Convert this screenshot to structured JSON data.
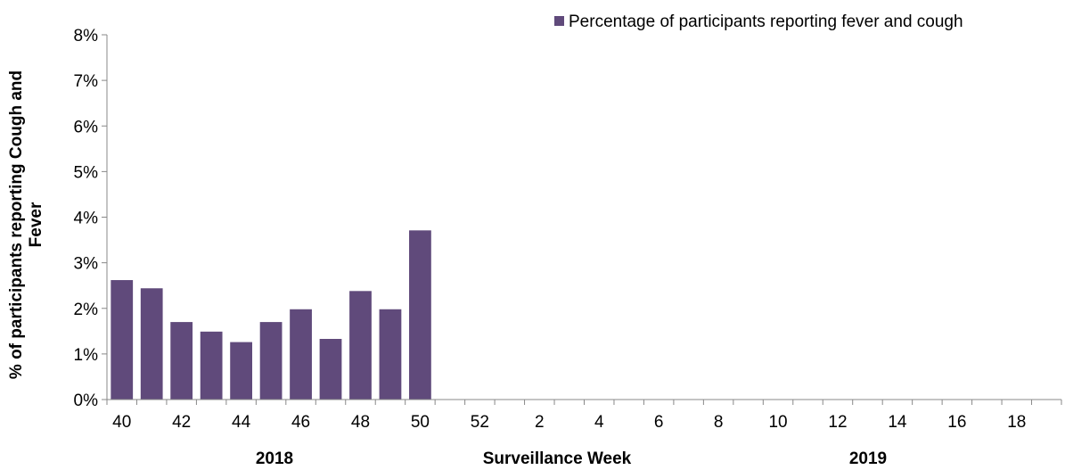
{
  "chart_data": {
    "type": "bar",
    "categories": [
      "40",
      "41",
      "42",
      "43",
      "44",
      "45",
      "46",
      "47",
      "48",
      "49",
      "50",
      "51",
      "52",
      "1",
      "2",
      "3",
      "4",
      "5",
      "6",
      "7",
      "8",
      "9",
      "10",
      "11",
      "12",
      "13",
      "14",
      "15",
      "16",
      "17",
      "18",
      "19"
    ],
    "x_tick_labels": [
      "40",
      "42",
      "44",
      "46",
      "48",
      "50",
      "52",
      "2",
      "4",
      "6",
      "8",
      "10",
      "12",
      "14",
      "16",
      "18"
    ],
    "series": [
      {
        "name": "Percentage of participants reporting fever and cough",
        "color": "#604a7b",
        "values": [
          2.62,
          2.44,
          1.7,
          1.49,
          1.26,
          1.7,
          1.98,
          1.33,
          2.38,
          1.98,
          3.71,
          null,
          null,
          null,
          null,
          null,
          null,
          null,
          null,
          null,
          null,
          null,
          null,
          null,
          null,
          null,
          null,
          null,
          null,
          null,
          null,
          null
        ]
      }
    ],
    "ylim": [
      0,
      8
    ],
    "y_ticks": [
      "0%",
      "1%",
      "2%",
      "3%",
      "4%",
      "5%",
      "6%",
      "7%",
      "8%"
    ],
    "ylabel_line1": "% of participants reporting Cough and",
    "ylabel_line2": "Fever",
    "xlabel": "Surveillance  Week",
    "year_labels": [
      "2018",
      "2019"
    ],
    "legend_position": "top-right",
    "grid": false
  }
}
